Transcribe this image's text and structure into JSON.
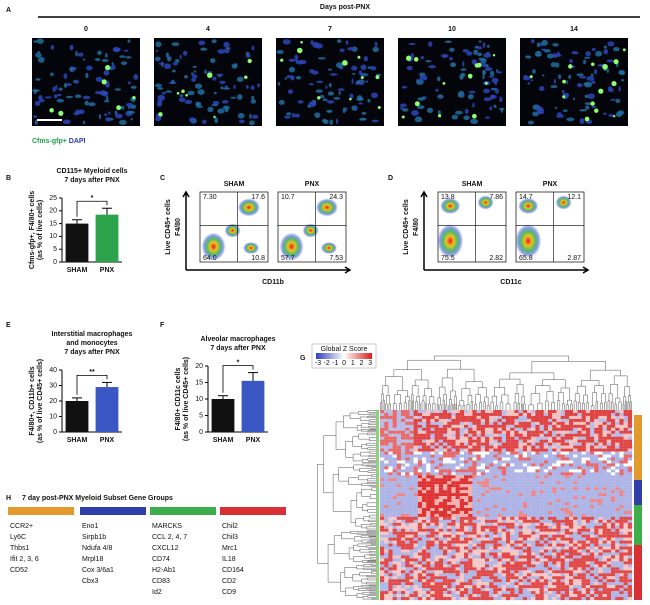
{
  "panel_letters": [
    "A",
    "B",
    "C",
    "D",
    "E",
    "F",
    "G",
    "H"
  ],
  "panel_a": {
    "title": "Days post-PNX",
    "days": [
      "0",
      "4",
      "7",
      "10",
      "14"
    ],
    "legend": [
      {
        "text": "Cfms-gfp+",
        "color": "#22a04a"
      },
      {
        "text": "DAPI",
        "color": "#2b3fb0"
      }
    ]
  },
  "chart_data": [
    {
      "type": "bar",
      "title": [
        "CD115+ Myeloid cells",
        "7 days after PNX"
      ],
      "y_label": [
        "Cfms-gfp+, F4/80+ cells",
        "(as % of live cells)"
      ],
      "categories": [
        "SHAM",
        "PNX"
      ],
      "values": [
        15,
        18.5
      ],
      "errors": [
        1.5,
        2.5
      ],
      "colors": [
        "#111111",
        "#2ca24b"
      ],
      "ylim": [
        0,
        25
      ],
      "yticks": [
        0,
        5,
        10,
        15,
        20,
        25
      ],
      "significance": "*"
    },
    {
      "type": "bar",
      "title": [
        "Interstitial macrophages",
        "and monocytes",
        "7 days after PNX"
      ],
      "y_label": [
        "F4/80+, CD11b+ cells",
        "(as % of live CD45+ cells)"
      ],
      "categories": [
        "SHAM",
        "PNX"
      ],
      "values": [
        20,
        29
      ],
      "errors": [
        2,
        3
      ],
      "colors": [
        "#111111",
        "#3a57c4"
      ],
      "ylim": [
        0,
        40
      ],
      "yticks": [
        0,
        10,
        20,
        30,
        40
      ],
      "significance": "**"
    },
    {
      "type": "bar",
      "title": [
        "Alveolar macrophages",
        "7 days after PNX"
      ],
      "y_label": [
        "F4/80+ CD11c cells",
        "(as % of live CD45+ cells)"
      ],
      "categories": [
        "SHAM",
        "PNX"
      ],
      "values": [
        10,
        15.5
      ],
      "errors": [
        1,
        2.5
      ],
      "colors": [
        "#111111",
        "#3a57c4"
      ],
      "ylim": [
        0,
        20
      ],
      "yticks": [
        0,
        5,
        10,
        15,
        20
      ],
      "significance": "*"
    }
  ],
  "panel_c": {
    "gate": "Live CD45+ cells",
    "y_label": "F4/80",
    "x_label": "CD11b",
    "plots": [
      {
        "title": "SHAM",
        "quadrants": [
          "7.30",
          "17.6",
          "64.0",
          "10.8"
        ]
      },
      {
        "title": "PNX",
        "quadrants": [
          "10.7",
          "24.3",
          "57.7",
          "7.53"
        ]
      }
    ]
  },
  "panel_d": {
    "gate": "Live CD45+ cells",
    "y_label": "F4/80",
    "x_label": "CD11c",
    "plots": [
      {
        "title": "SHAM",
        "quadrants": [
          "13.8",
          "7.86",
          "75.5",
          "2.82"
        ]
      },
      {
        "title": "PNX",
        "quadrants": [
          "14.7",
          "12.1",
          "65.8",
          "2.87"
        ]
      }
    ]
  },
  "panel_g": {
    "key_title": "Global Z Score",
    "key_ticks": [
      "-3",
      "-2",
      "-1",
      "0",
      "1",
      "2",
      "3"
    ]
  },
  "panel_h": {
    "title": "7 day post-PNX Myeloid Subset Gene Groups",
    "groups": [
      {
        "color": "#e39a2d",
        "genes": [
          "CCR2+",
          "Ly6C",
          "Thbs1",
          "Ifit 2, 3, 6",
          "CD52"
        ]
      },
      {
        "color": "#2f3ea8",
        "genes": [
          "Eno1",
          "Sirpb1b",
          "Ndufa 4/8",
          "Mrpl18",
          "Cox 3/6a1",
          "Cbx3"
        ]
      },
      {
        "color": "#3cae4a",
        "genes": [
          "MARCKS",
          "CCL 2, 4, 7",
          "CXCL12",
          "CD74",
          "H2-Ab1",
          "CD83",
          "Id2"
        ]
      },
      {
        "color": "#d93035",
        "genes": [
          "Chil2",
          "Chil3",
          "Mrc1",
          "IL18",
          "CD164",
          "CD2",
          "CD9"
        ]
      }
    ]
  }
}
